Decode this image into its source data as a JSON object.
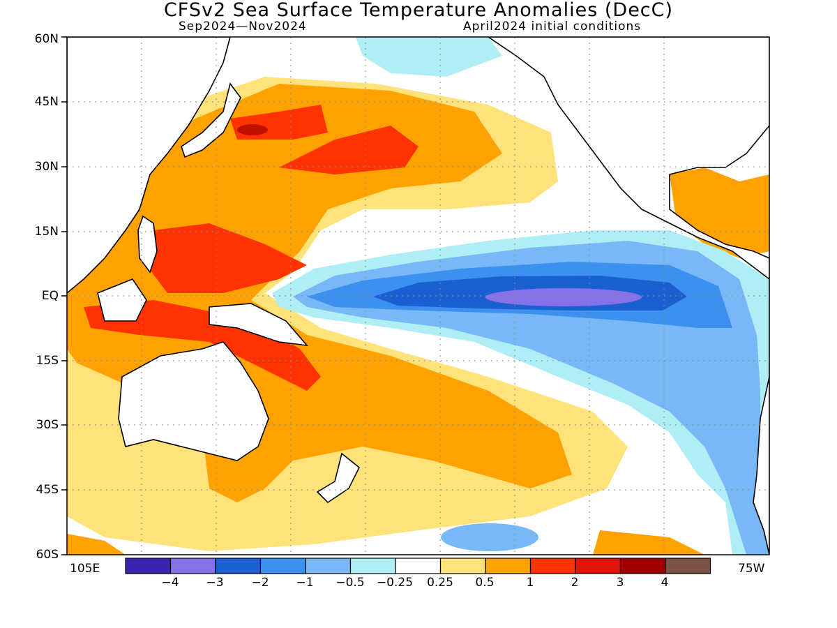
{
  "header": {
    "title": "CFSv2 Sea Surface Temperature Anomalies (DecC)",
    "period": "Sep2024—Nov2024",
    "init": "April2024 initial conditions"
  },
  "map": {
    "lat_labels": [
      "60N",
      "45N",
      "30N",
      "15N",
      "EQ",
      "15S",
      "30S",
      "45S",
      "60S"
    ],
    "lon_left": "105E",
    "lon_right": "75W"
  },
  "legend": {
    "colors": [
      "#3a24b0",
      "#8672e8",
      "#1b60d0",
      "#3c90f0",
      "#78b8f6",
      "#b0eef6",
      "#ffffff",
      "#ffe27a",
      "#ffa200",
      "#ff3200",
      "#e01408",
      "#a00000",
      "#7a5246"
    ],
    "labels": [
      "−4",
      "−3",
      "−2",
      "−1",
      "−0.5",
      "−0.25",
      "0.25",
      "0.5",
      "1",
      "2",
      "3",
      "4"
    ]
  }
}
